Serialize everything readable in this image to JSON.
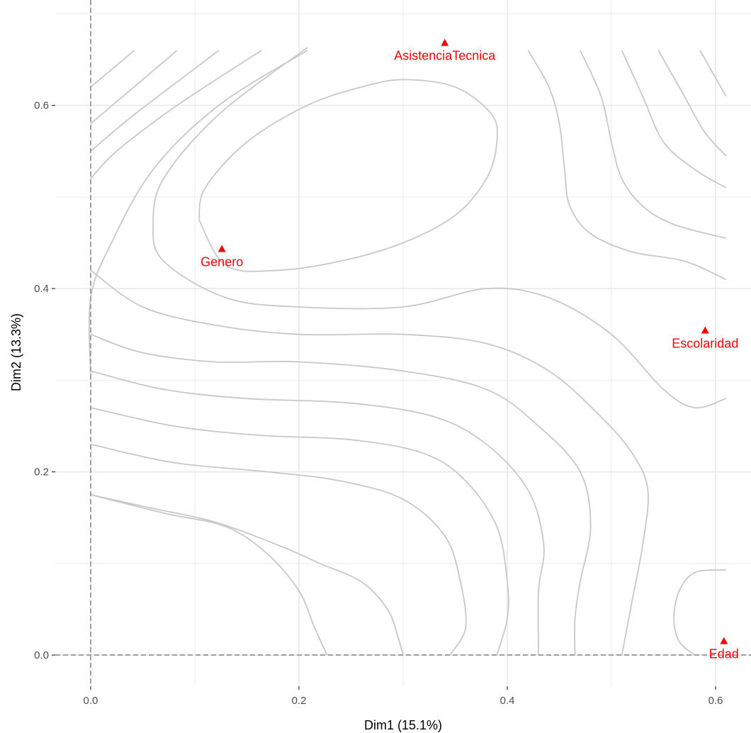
{
  "chart_data": {
    "type": "scatter",
    "title": "",
    "xlabel": "Dim1 (15.1%)",
    "ylabel": "Dim2 (13.3%)",
    "xlim": [
      -0.034,
      0.634
    ],
    "ylim": [
      -0.034,
      0.715
    ],
    "x_ticks": [
      {
        "value": 0.0,
        "label": "0.0"
      },
      {
        "value": 0.2,
        "label": "0.2"
      },
      {
        "value": 0.4,
        "label": "0.4"
      },
      {
        "value": 0.6,
        "label": "0.6"
      }
    ],
    "y_ticks": [
      {
        "value": 0.0,
        "label": "0.0"
      },
      {
        "value": 0.2,
        "label": "0.2"
      },
      {
        "value": 0.4,
        "label": "0.4"
      },
      {
        "value": 0.6,
        "label": "0.6"
      }
    ],
    "grid": true,
    "reference_lines": {
      "x": 0,
      "y": 0,
      "style": "dashed"
    },
    "colors": {
      "points": "#ff0000",
      "contours": "#c8c8c8",
      "grid": "#ebebeb",
      "reference": "#a0a0a0"
    },
    "points": [
      {
        "label": "AsistenciaTecnica",
        "x": 0.34,
        "y": 0.668,
        "marker": "triangle"
      },
      {
        "label": "Genero",
        "x": 0.126,
        "y": 0.443,
        "marker": "triangle"
      },
      {
        "label": "Escolaridad",
        "x": 0.59,
        "y": 0.354,
        "marker": "triangle"
      },
      {
        "label": "Edad",
        "x": 0.608,
        "y": 0.015,
        "marker": "triangle"
      }
    ],
    "contours": [
      [
        [
          0.042,
          0.66
        ],
        [
          0.0,
          0.62
        ]
      ],
      [
        [
          0.083,
          0.66
        ],
        [
          0.0,
          0.58
        ]
      ],
      [
        [
          0.123,
          0.66
        ],
        [
          0.042,
          0.59
        ],
        [
          0.0,
          0.55
        ]
      ],
      [
        [
          0.164,
          0.66
        ],
        [
          0.083,
          0.6
        ],
        [
          0.025,
          0.55
        ],
        [
          0.0,
          0.52
        ]
      ],
      [
        [
          0.208,
          0.66
        ],
        [
          0.123,
          0.6
        ],
        [
          0.06,
          0.53
        ],
        [
          0.02,
          0.45
        ],
        [
          0.0,
          0.39
        ],
        [
          0.0,
          0.3
        ]
      ],
      [
        [
          0.104,
          0.475
        ],
        [
          0.11,
          0.51
        ],
        [
          0.15,
          0.56
        ],
        [
          0.208,
          0.6
        ],
        [
          0.26,
          0.62
        ],
        [
          0.3,
          0.628
        ],
        [
          0.35,
          0.62
        ],
        [
          0.385,
          0.59
        ],
        [
          0.39,
          0.56
        ],
        [
          0.38,
          0.52
        ],
        [
          0.35,
          0.48
        ],
        [
          0.3,
          0.45
        ],
        [
          0.24,
          0.43
        ],
        [
          0.18,
          0.42
        ],
        [
          0.13,
          0.425
        ],
        [
          0.104,
          0.475
        ]
      ],
      [
        [
          0.208,
          0.663
        ],
        [
          0.123,
          0.59
        ],
        [
          0.07,
          0.52
        ],
        [
          0.06,
          0.47
        ],
        [
          0.07,
          0.43
        ],
        [
          0.13,
          0.39
        ],
        [
          0.2,
          0.38
        ],
        [
          0.3,
          0.38
        ],
        [
          0.38,
          0.4
        ],
        [
          0.44,
          0.39
        ],
        [
          0.5,
          0.35
        ],
        [
          0.55,
          0.29
        ],
        [
          0.58,
          0.27
        ],
        [
          0.61,
          0.28
        ]
      ],
      [
        [
          0.0,
          0.42
        ],
        [
          0.05,
          0.38
        ],
        [
          0.12,
          0.36
        ],
        [
          0.2,
          0.35
        ],
        [
          0.3,
          0.35
        ],
        [
          0.38,
          0.34
        ],
        [
          0.44,
          0.31
        ],
        [
          0.49,
          0.26
        ],
        [
          0.52,
          0.22
        ],
        [
          0.535,
          0.18
        ],
        [
          0.53,
          0.12
        ],
        [
          0.52,
          0.06
        ],
        [
          0.51,
          0.0
        ]
      ],
      [
        [
          0.0,
          0.35
        ],
        [
          0.05,
          0.33
        ],
        [
          0.12,
          0.32
        ],
        [
          0.2,
          0.32
        ],
        [
          0.3,
          0.31
        ],
        [
          0.38,
          0.29
        ],
        [
          0.43,
          0.25
        ],
        [
          0.47,
          0.2
        ],
        [
          0.48,
          0.14
        ],
        [
          0.47,
          0.08
        ],
        [
          0.465,
          0.04
        ],
        [
          0.465,
          0.0
        ]
      ],
      [
        [
          0.0,
          0.31
        ],
        [
          0.07,
          0.29
        ],
        [
          0.15,
          0.28
        ],
        [
          0.25,
          0.275
        ],
        [
          0.33,
          0.26
        ],
        [
          0.38,
          0.23
        ],
        [
          0.42,
          0.18
        ],
        [
          0.435,
          0.12
        ],
        [
          0.43,
          0.07
        ],
        [
          0.43,
          0.0
        ]
      ],
      [
        [
          0.0,
          0.27
        ],
        [
          0.08,
          0.25
        ],
        [
          0.16,
          0.24
        ],
        [
          0.25,
          0.235
        ],
        [
          0.32,
          0.22
        ],
        [
          0.36,
          0.19
        ],
        [
          0.39,
          0.14
        ],
        [
          0.4,
          0.08
        ],
        [
          0.4,
          0.04
        ],
        [
          0.39,
          0.0
        ]
      ],
      [
        [
          0.0,
          0.23
        ],
        [
          0.08,
          0.21
        ],
        [
          0.17,
          0.2
        ],
        [
          0.24,
          0.19
        ],
        [
          0.3,
          0.17
        ],
        [
          0.34,
          0.13
        ],
        [
          0.355,
          0.08
        ],
        [
          0.36,
          0.03
        ],
        [
          0.345,
          0.0
        ]
      ],
      [
        [
          0.0,
          0.175
        ],
        [
          0.06,
          0.16
        ],
        [
          0.12,
          0.145
        ],
        [
          0.18,
          0.12
        ],
        [
          0.22,
          0.1
        ],
        [
          0.26,
          0.08
        ],
        [
          0.285,
          0.05
        ],
        [
          0.295,
          0.02
        ],
        [
          0.3,
          0.0
        ]
      ],
      [
        [
          0.0,
          0.175
        ],
        [
          0.07,
          0.155
        ],
        [
          0.13,
          0.14
        ],
        [
          0.17,
          0.11
        ],
        [
          0.2,
          0.07
        ],
        [
          0.215,
          0.03
        ],
        [
          0.227,
          0.0
        ]
      ],
      [
        [
          0.42,
          0.66
        ],
        [
          0.44,
          0.62
        ],
        [
          0.45,
          0.58
        ],
        [
          0.455,
          0.53
        ],
        [
          0.46,
          0.49
        ],
        [
          0.48,
          0.46
        ],
        [
          0.52,
          0.44
        ],
        [
          0.57,
          0.43
        ],
        [
          0.61,
          0.41
        ]
      ],
      [
        [
          0.47,
          0.66
        ],
        [
          0.49,
          0.61
        ],
        [
          0.5,
          0.56
        ],
        [
          0.51,
          0.52
        ],
        [
          0.53,
          0.49
        ],
        [
          0.56,
          0.47
        ],
        [
          0.61,
          0.455
        ]
      ],
      [
        [
          0.51,
          0.66
        ],
        [
          0.53,
          0.61
        ],
        [
          0.55,
          0.56
        ],
        [
          0.58,
          0.53
        ],
        [
          0.61,
          0.51
        ]
      ],
      [
        [
          0.545,
          0.66
        ],
        [
          0.57,
          0.61
        ],
        [
          0.59,
          0.57
        ],
        [
          0.61,
          0.545
        ]
      ],
      [
        [
          0.585,
          0.66
        ],
        [
          0.6,
          0.63
        ],
        [
          0.61,
          0.61
        ]
      ],
      [
        [
          0.607,
          0.093
        ],
        [
          0.58,
          0.09
        ],
        [
          0.565,
          0.07
        ],
        [
          0.56,
          0.04
        ],
        [
          0.565,
          0.015
        ],
        [
          0.58,
          0.0
        ]
      ],
      [
        [
          0.607,
          0.093
        ],
        [
          0.61,
          0.093
        ]
      ]
    ]
  }
}
